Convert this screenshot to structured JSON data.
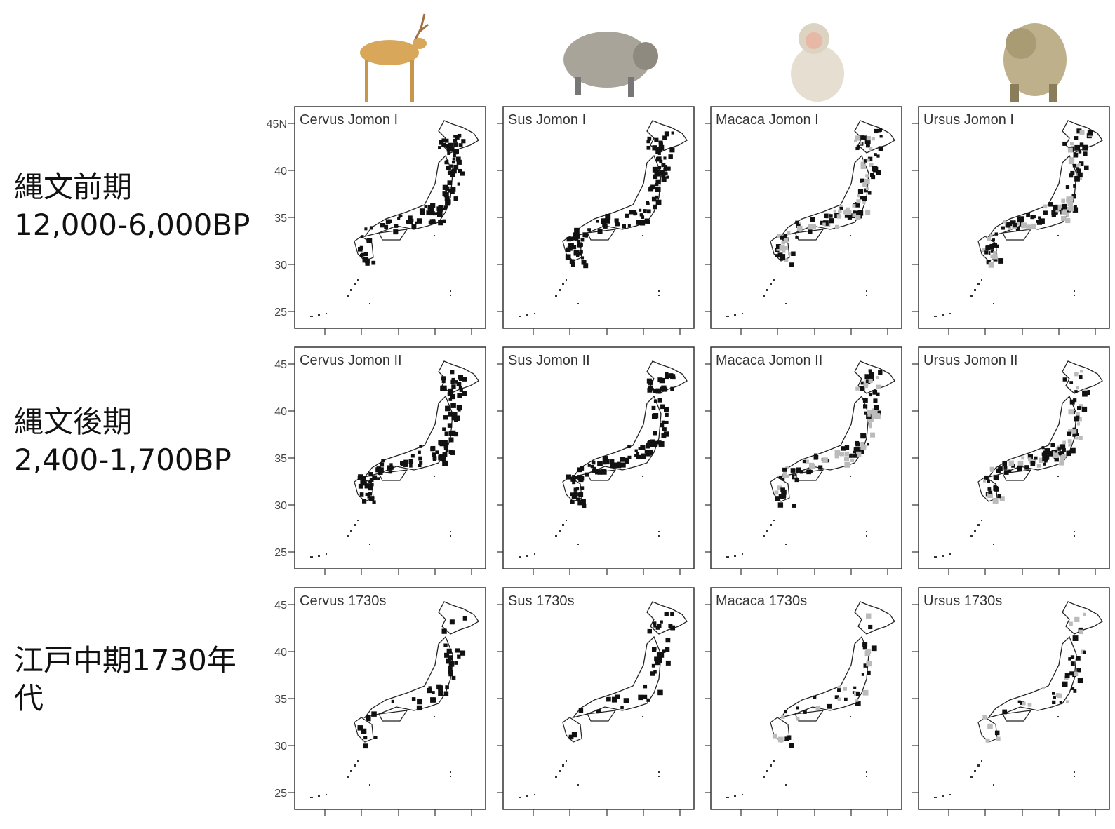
{
  "rows": [
    {
      "label_lines": [
        "縄文前期",
        "12,000-6,000BP"
      ],
      "yticks": [
        {
          "value": 45,
          "label": "45N"
        },
        40,
        35,
        30,
        25
      ],
      "panels": [
        "Cervus Jomon I",
        "Sus Jomon I",
        "Macaca Jomon I",
        "Ursus Jomon I"
      ]
    },
    {
      "label_lines": [
        "縄文後期",
        "2,400-1,700BP"
      ],
      "yticks": [
        45,
        40,
        35,
        30,
        25
      ],
      "panels": [
        "Cervus Jomon II",
        "Sus Jomon II",
        "Macaca Jomon II",
        "Ursus Jomon II"
      ]
    },
    {
      "label_lines": [
        "江戸中期1730年代"
      ],
      "yticks": [
        45,
        40,
        35,
        30,
        25
      ],
      "panels": [
        "Cervus 1730s",
        "Sus 1730s",
        "Macaca 1730s",
        "Ursus 1730s"
      ]
    }
  ]
}
